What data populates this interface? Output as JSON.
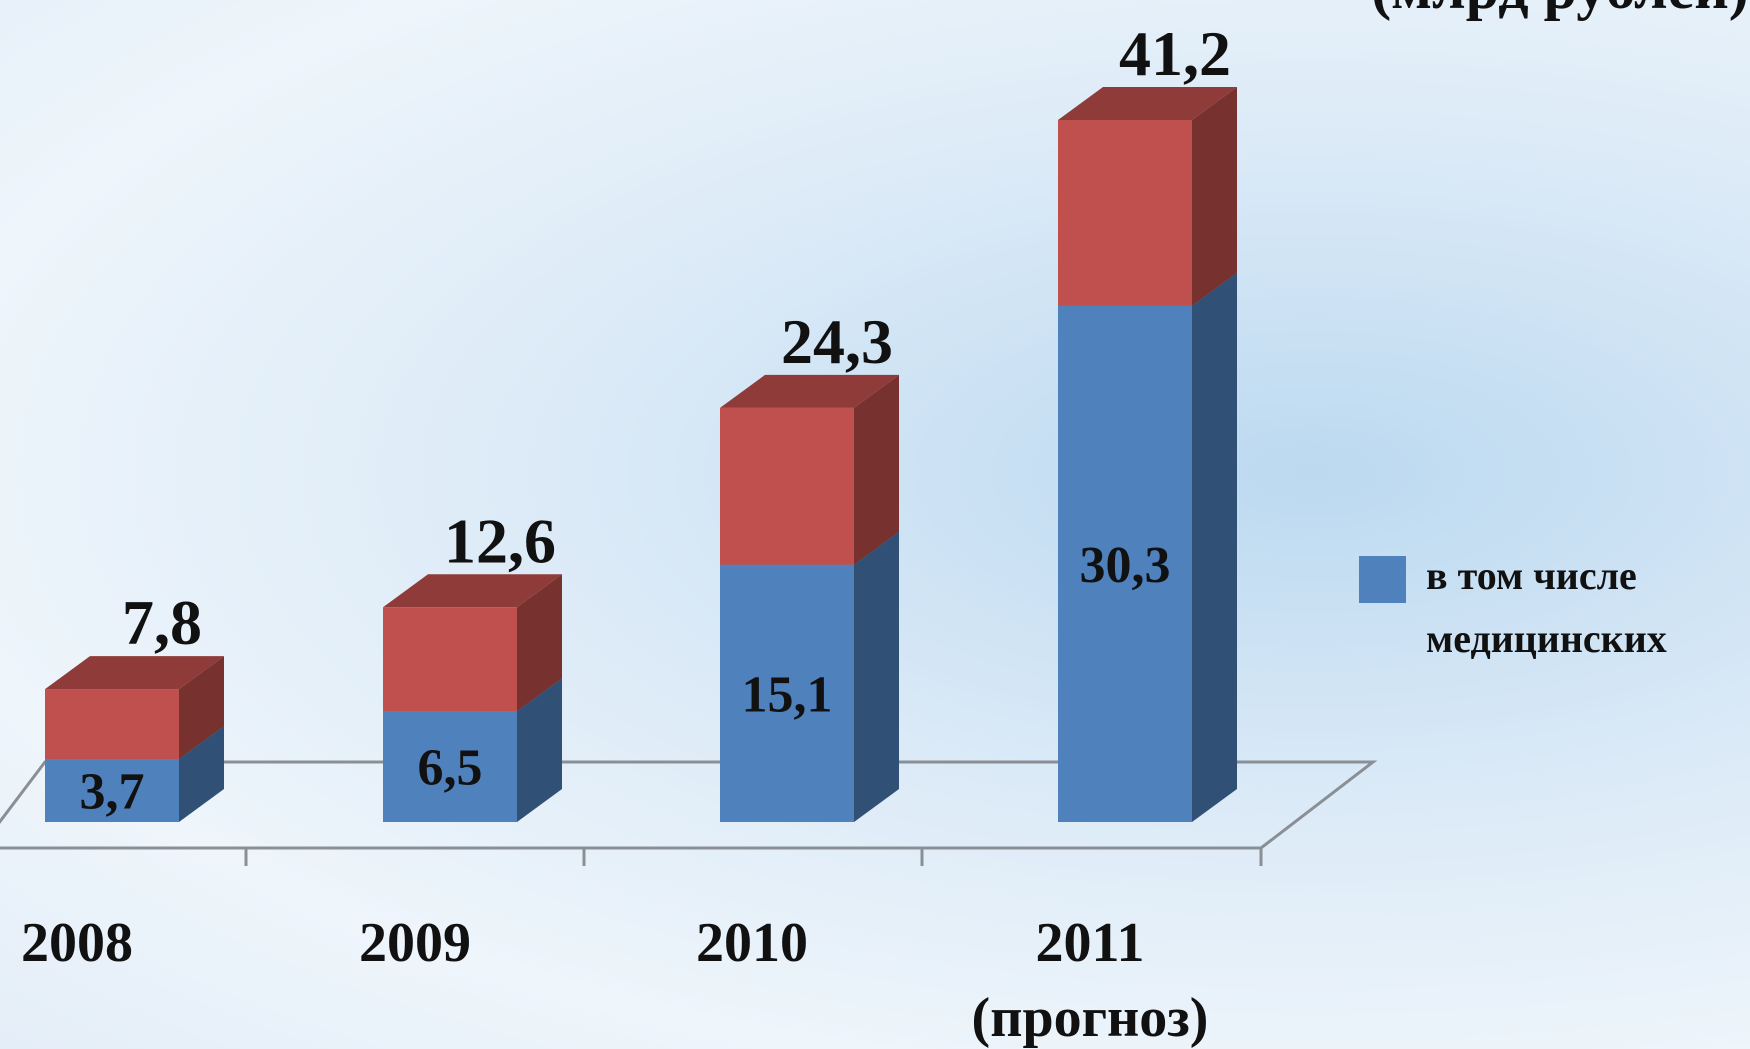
{
  "chart_data": {
    "type": "bar3d_stacked",
    "subtitle": "(млрд рублей)",
    "categories": [
      "2008",
      "2009",
      "2010",
      "2011"
    ],
    "category_sublabels": [
      null,
      null,
      null,
      "(прогноз)"
    ],
    "series": [
      {
        "name": "в том числе медицинских",
        "color": "#4f81bd",
        "values": [
          3.7,
          6.5,
          15.1,
          30.3
        ],
        "value_labels": [
          "3,7",
          "6,5",
          "15,1",
          "30,3"
        ]
      },
      {
        "color": "#c0504d",
        "values": [
          4.1,
          6.1,
          9.2,
          10.9
        ]
      }
    ],
    "totals": {
      "values": [
        7.8,
        12.6,
        24.3,
        41.2
      ],
      "value_labels": [
        "7,8",
        "12,6",
        "24,3",
        "41,2"
      ]
    },
    "legend": "right"
  }
}
